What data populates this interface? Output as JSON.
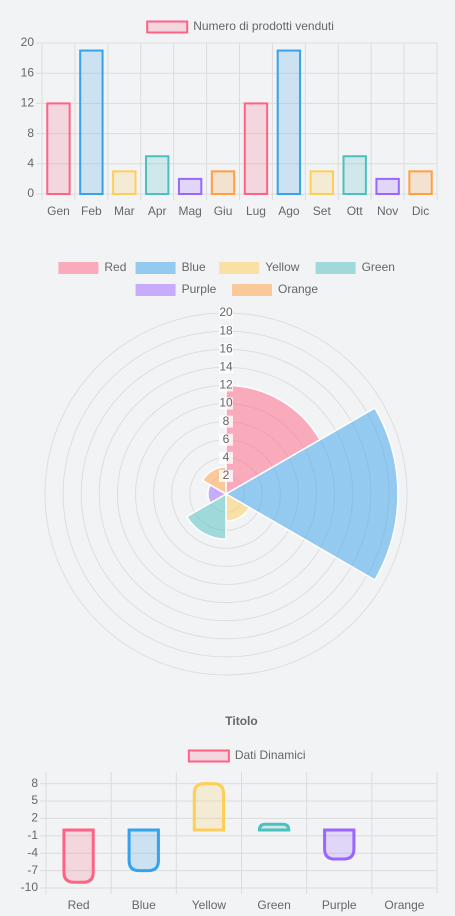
{
  "chart_data": [
    {
      "type": "bar",
      "legend_position": "top",
      "grid": true,
      "ylim": [
        0,
        20
      ],
      "y_ticks": [
        0,
        4,
        8,
        12,
        16,
        20
      ],
      "categories": [
        "Gen",
        "Feb",
        "Mar",
        "Apr",
        "Mag",
        "Giu",
        "Lug",
        "Ago",
        "Set",
        "Ott",
        "Nov",
        "Dic"
      ],
      "series": [
        {
          "name": "Numero di prodotti venduti",
          "values": [
            12,
            19,
            3,
            5,
            2,
            3,
            12,
            19,
            3,
            5,
            2,
            3
          ],
          "colors": [
            "#ff6384",
            "#36a2eb",
            "#ffce56",
            "#4bc0c0",
            "#9966ff",
            "#ff9f40",
            "#ff6384",
            "#36a2eb",
            "#ffce56",
            "#4bc0c0",
            "#9966ff",
            "#ff9f40"
          ]
        }
      ]
    },
    {
      "type": "polarArea",
      "legend_position": "top",
      "grid": true,
      "rlim": [
        0,
        20
      ],
      "r_ticks": [
        2,
        4,
        6,
        8,
        10,
        12,
        14,
        16,
        18,
        20
      ],
      "categories": [
        "Red",
        "Blue",
        "Yellow",
        "Green",
        "Purple",
        "Orange"
      ],
      "values": [
        12,
        19,
        3,
        5,
        2,
        3
      ],
      "colors": [
        "#ff6384",
        "#36a2eb",
        "#ffce56",
        "#4bc0c0",
        "#9966ff",
        "#ff9f40"
      ]
    },
    {
      "type": "bar",
      "title": "Titolo",
      "legend_position": "top",
      "grid": true,
      "ylim": [
        -10,
        10
      ],
      "y_ticks": [
        -10,
        -7,
        -4,
        -1,
        2,
        5,
        8
      ],
      "categories": [
        "Red",
        "Blue",
        "Yellow",
        "Green",
        "Purple",
        "Orange"
      ],
      "series": [
        {
          "name": "Dati Dinamici",
          "values": [
            -9,
            -7,
            8,
            1,
            -5,
            0
          ],
          "colors": [
            "#ff6384",
            "#36a2eb",
            "#ffce56",
            "#4bc0c0",
            "#9966ff",
            "#ff9f40"
          ]
        }
      ]
    }
  ]
}
